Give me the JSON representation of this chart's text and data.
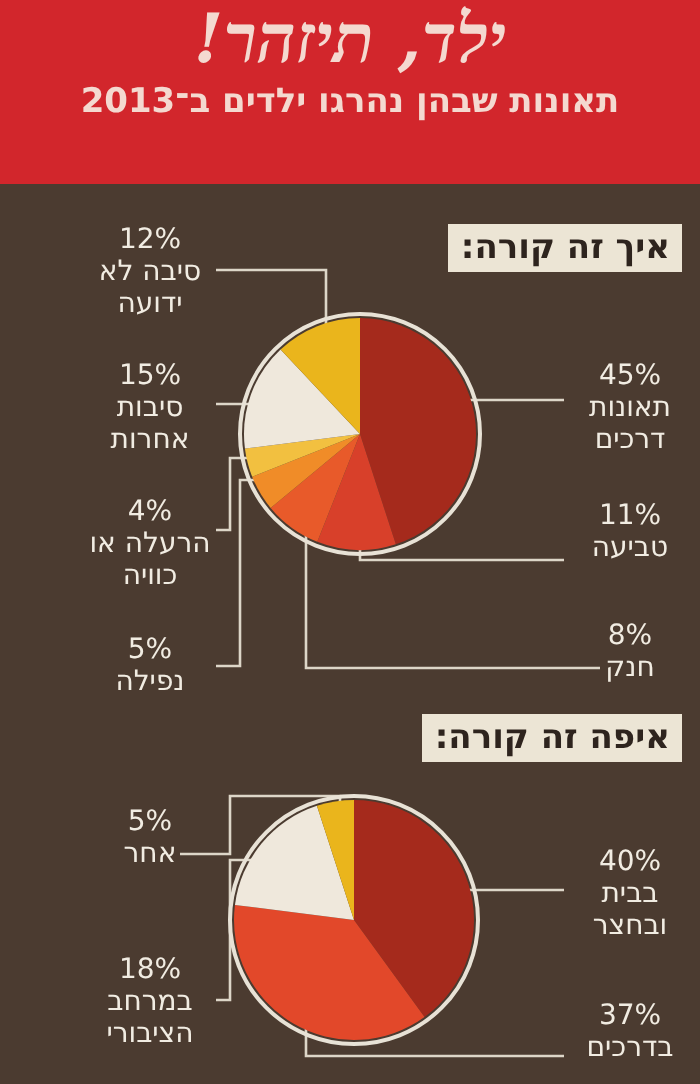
{
  "chart_data": [
    {
      "type": "pie",
      "title": "ילד, תיזהר!",
      "subtitle": "תאונות שבהן נהרגו ילדים ב־2013",
      "annotations": [
        "איך זה קורה:"
      ],
      "categories": [
        "תאונות דרכים",
        "טביעה",
        "חנק",
        "נפילה",
        "הרעלה או כוויה",
        "סיבות אחרות",
        "סיבה לא ידועה"
      ],
      "values": [
        45,
        11,
        8,
        5,
        4,
        15,
        12
      ],
      "value_labels": [
        "45%",
        "11%",
        "8%",
        "5%",
        "4%",
        "15%",
        "12%"
      ],
      "colors": [
        "#a52a1c",
        "#d8402a",
        "#e85a2a",
        "#f08c28",
        "#f2c040",
        "#efe8dc",
        "#eab51c"
      ]
    },
    {
      "type": "pie",
      "annotations": [
        "איפה זה קורה:"
      ],
      "categories": [
        "בבית ובחצר",
        "בדרכים",
        "במרחב הציבורי",
        "אחר"
      ],
      "values": [
        40,
        37,
        18,
        5
      ],
      "value_labels": [
        "40%",
        "37%",
        "18%",
        "5%"
      ],
      "colors": [
        "#a52a1c",
        "#e2482a",
        "#efe8dc",
        "#eab51c"
      ]
    }
  ]
}
